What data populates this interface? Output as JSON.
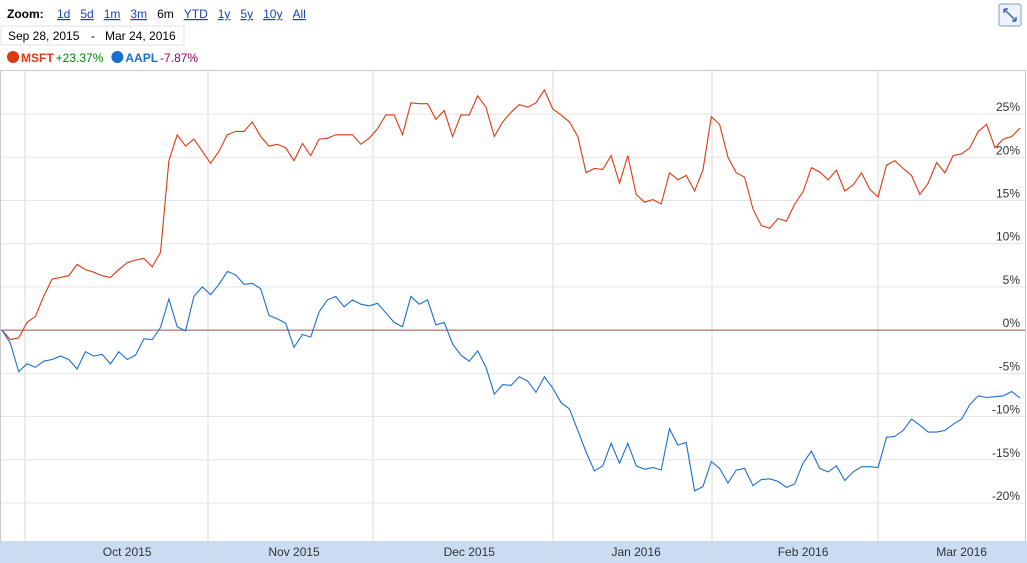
{
  "zoom": {
    "label": "Zoom:",
    "options": [
      "1d",
      "5d",
      "1m",
      "3m",
      "6m",
      "YTD",
      "1y",
      "5y",
      "10y",
      "All"
    ],
    "active_index": 4
  },
  "date_range": {
    "start": "Sep 28, 2015",
    "separator": "-",
    "end": "Mar 24, 2016"
  },
  "chart_data": {
    "type": "line",
    "categories": [
      null,
      null,
      null,
      null,
      null,
      null,
      null,
      null,
      null,
      null,
      null,
      null,
      null,
      null,
      null,
      "Oct 2015",
      null,
      null,
      null,
      null,
      null,
      null,
      null,
      null,
      null,
      null,
      null,
      null,
      null,
      null,
      null,
      null,
      null,
      null,
      null,
      "Nov 2015",
      null,
      null,
      null,
      null,
      null,
      null,
      null,
      null,
      null,
      null,
      null,
      null,
      null,
      null,
      null,
      null,
      null,
      null,
      null,
      null,
      "Dec 2015",
      null,
      null,
      null,
      null,
      null,
      null,
      null,
      null,
      null,
      null,
      null,
      null,
      null,
      null,
      null,
      null,
      null,
      null,
      null,
      "Jan 2016",
      null,
      null,
      null,
      null,
      null,
      null,
      null,
      null,
      null,
      null,
      null,
      null,
      null,
      null,
      null,
      null,
      null,
      null,
      null,
      "Feb 2016",
      null,
      null,
      null,
      null,
      null,
      null,
      null,
      null,
      null,
      null,
      null,
      null,
      null,
      null,
      null,
      null,
      null,
      null,
      "Mar 2016",
      null,
      null,
      null,
      null,
      null,
      null,
      null
    ],
    "series": [
      {
        "name": "MSFT",
        "color": "#dc3912",
        "change_label": "+23.37%",
        "change_color": "#008000",
        "values": [
          0,
          -1.1,
          -0.9,
          0.9,
          1.6,
          3.9,
          5.9,
          6.1,
          6.3,
          7.6,
          7,
          6.7,
          6.3,
          6.1,
          7,
          7.8,
          8.1,
          8.3,
          7.3,
          9,
          19.6,
          22.6,
          21.3,
          22.1,
          20.7,
          19.3,
          20.7,
          22.6,
          23,
          23,
          24.1,
          22.4,
          21.3,
          21.5,
          21.1,
          19.6,
          21.6,
          20.2,
          22.1,
          22.2,
          22.6,
          22.6,
          22.6,
          21.5,
          22.2,
          23.3,
          24.9,
          24.9,
          22.6,
          26.3,
          26.2,
          26.2,
          24.4,
          25.4,
          22.4,
          24.9,
          24.9,
          27.1,
          25.8,
          22.4,
          24.1,
          25.2,
          26.1,
          25.8,
          26.3,
          27.8,
          25.6,
          24.9,
          24.1,
          22.4,
          18.2,
          18.7,
          18.6,
          20.2,
          17,
          20.2,
          15.7,
          14.8,
          15.1,
          14.6,
          18.2,
          17.4,
          17.9,
          16.1,
          18.5,
          24.7,
          23.8,
          20,
          18.2,
          17.7,
          14,
          12.1,
          11.8,
          12.9,
          12.6,
          14.6,
          16,
          18.8,
          18.3,
          17.4,
          18.5,
          16.1,
          16.8,
          18.2,
          16.3,
          15.4,
          19.1,
          19.6,
          18.7,
          17.9,
          15.7,
          17,
          19.4,
          18.2,
          20.2,
          20.4,
          21.1,
          23,
          23.8,
          21.1,
          22.1,
          22.4,
          23.37
        ]
      },
      {
        "name": "AAPL",
        "color": "#1a6ecf",
        "change_label": "-7.87%",
        "change_color": "#990066",
        "values": [
          0,
          -1.5,
          -4.8,
          -3.9,
          -4.3,
          -3.6,
          -3.4,
          -3.0,
          -3.4,
          -4.5,
          -2.5,
          -3.0,
          -2.8,
          -3.9,
          -2.5,
          -3.4,
          -2.9,
          -1.0,
          -1.1,
          0.3,
          3.6,
          0.4,
          -0.1,
          3.9,
          5,
          4.1,
          5.3,
          6.8,
          6.4,
          5.3,
          5.4,
          4.8,
          1.7,
          1.3,
          0.8,
          -2.0,
          -0.5,
          -0.8,
          2.1,
          3.5,
          3.9,
          2.7,
          3.5,
          3.0,
          2.8,
          3.1,
          2.0,
          0.9,
          0.4,
          3.9,
          3.0,
          3.5,
          0.6,
          0.9,
          -1.6,
          -2.9,
          -3.6,
          -2.4,
          -4.3,
          -7.4,
          -6.3,
          -6.4,
          -5.4,
          -5.9,
          -7.2,
          -5.4,
          -6.7,
          -8.4,
          -9.1,
          -11.6,
          -14.1,
          -16.3,
          -15.7,
          -13.1,
          -15.4,
          -13.1,
          -15.7,
          -16.1,
          -15.9,
          -16.2,
          -11.4,
          -13.3,
          -13.0,
          -18.6,
          -18.1,
          -15.2,
          -16.0,
          -17.7,
          -16.2,
          -16.0,
          -18.0,
          -17.3,
          -17.2,
          -17.5,
          -18.2,
          -17.8,
          -15.4,
          -14.0,
          -16.0,
          -16.4,
          -15.7,
          -17.4,
          -16.4,
          -15.8,
          -15.8,
          -15.9,
          -12.4,
          -12.3,
          -11.6,
          -10.3,
          -11.0,
          -11.8,
          -11.8,
          -11.6,
          -10.9,
          -10.3,
          -8.6,
          -7.6,
          -7.8,
          -7.7,
          -7.6,
          -7.1,
          -7.87
        ]
      }
    ],
    "ylim": [
      -24.4,
      30.1
    ],
    "yticks": [
      {
        "value": -20,
        "label": "-20%"
      },
      {
        "value": -15,
        "label": "-15%"
      },
      {
        "value": -10,
        "label": "-10%"
      },
      {
        "value": -5,
        "label": "-5%"
      },
      {
        "value": 0,
        "label": "0%"
      },
      {
        "value": 5,
        "label": "5%"
      },
      {
        "value": 10,
        "label": "10%"
      },
      {
        "value": 15,
        "label": "15%"
      },
      {
        "value": 20,
        "label": "20%"
      },
      {
        "value": 25,
        "label": "25%"
      }
    ],
    "grid": true,
    "zero_line_color": "#a0524a"
  }
}
